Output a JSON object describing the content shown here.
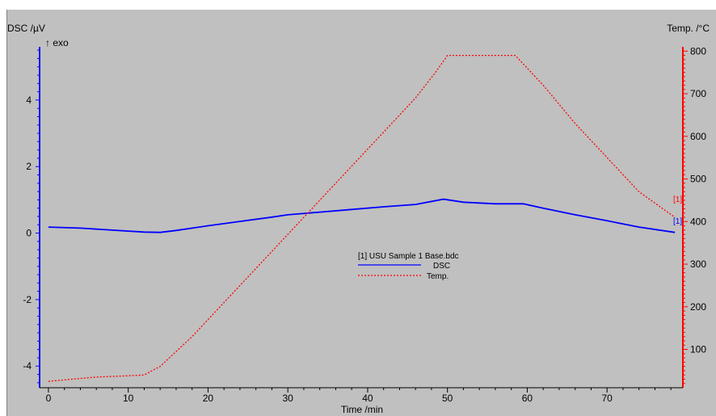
{
  "chart_data": {
    "type": "line",
    "xlabel": "Time /min",
    "y_left_label": "DSC /µV",
    "y_left_sublabel": "↑ exo",
    "y_right_label": "Temp. /°C",
    "x_ticks": [
      0,
      10,
      20,
      30,
      40,
      50,
      60,
      70
    ],
    "y_left_ticks": [
      -4,
      -2,
      0,
      2,
      4
    ],
    "y_right_ticks": [
      100,
      200,
      300,
      400,
      500,
      600,
      700,
      800
    ],
    "xlim": [
      -0.5,
      79.5
    ],
    "y_left_lim": [
      -4.65,
      5.6
    ],
    "y_right_lim": [
      10,
      810
    ],
    "legend": {
      "title": "[1] USU Sample 1 Base.bdc",
      "entries": [
        "DSC",
        "Temp."
      ]
    },
    "curve_tag": "[1]",
    "colors": {
      "dsc": "#0000ff",
      "temp": "#ff0000",
      "background": "#c0c0c0"
    },
    "series": [
      {
        "name": "DSC",
        "axis": "left",
        "x": [
          0,
          4,
          8,
          12,
          14,
          16,
          20,
          24,
          28,
          30,
          34,
          38,
          42,
          46,
          49.5,
          52,
          56,
          59.5,
          62,
          66,
          70,
          74,
          78.5
        ],
        "y": [
          0.18,
          0.15,
          0.09,
          0.03,
          0.02,
          0.08,
          0.22,
          0.35,
          0.48,
          0.55,
          0.63,
          0.71,
          0.79,
          0.86,
          1.02,
          0.93,
          0.88,
          0.88,
          0.75,
          0.55,
          0.37,
          0.18,
          0.02
        ]
      },
      {
        "name": "Temp.",
        "axis": "right",
        "x": [
          0,
          3,
          6,
          10,
          12,
          14,
          18,
          22,
          26,
          30,
          34,
          38,
          42,
          46,
          48.5,
          50,
          54,
          58.5,
          62,
          66,
          70,
          74,
          78.5
        ],
        "y": [
          25,
          30,
          35,
          38,
          40,
          60,
          130,
          210,
          290,
          370,
          450,
          530,
          610,
          690,
          750,
          790,
          790,
          790,
          720,
          630,
          550,
          470,
          410
        ]
      }
    ]
  }
}
